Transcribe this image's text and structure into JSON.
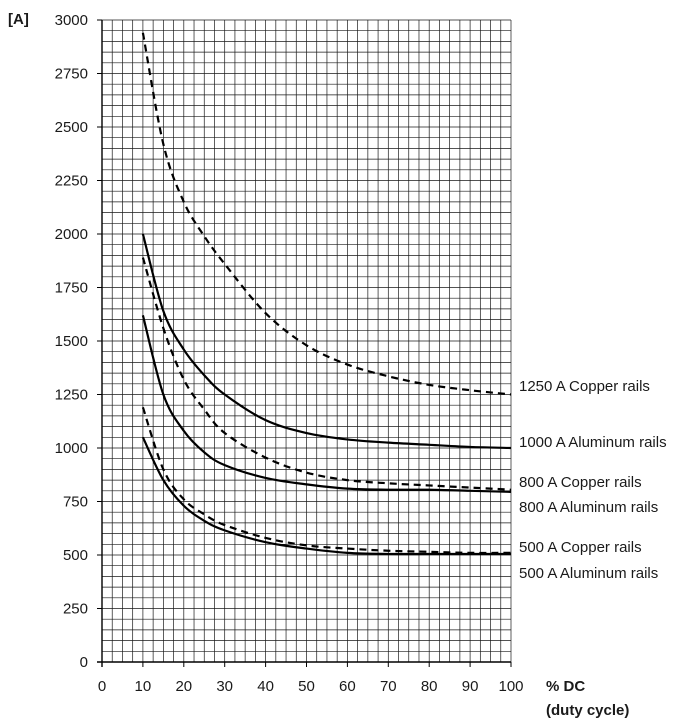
{
  "chart_data": {
    "type": "line",
    "ylabel": "[A]",
    "xlabel": "% DC",
    "xlabel_sub": "(duty cycle)",
    "xlim": [
      0,
      100
    ],
    "ylim": [
      0,
      3000
    ],
    "xticks": [
      0,
      10,
      20,
      30,
      40,
      50,
      60,
      70,
      80,
      90,
      100
    ],
    "yticks": [
      0,
      250,
      500,
      750,
      1000,
      1250,
      1500,
      1750,
      2000,
      2250,
      2500,
      2750,
      3000
    ],
    "grid": "on",
    "x": [
      10,
      15,
      20,
      25,
      30,
      40,
      50,
      60,
      70,
      80,
      90,
      100
    ],
    "series": [
      {
        "name": "1250 A Copper rails",
        "style": "dashed",
        "values": [
          2940,
          2420,
          2150,
          1990,
          1860,
          1630,
          1480,
          1390,
          1335,
          1295,
          1270,
          1250
        ]
      },
      {
        "name": "1000 A Aluminum rails",
        "style": "solid",
        "values": [
          2000,
          1640,
          1460,
          1340,
          1250,
          1130,
          1070,
          1040,
          1025,
          1015,
          1005,
          1000
        ]
      },
      {
        "name": "800 A Copper rails",
        "style": "dashed",
        "values": [
          1890,
          1560,
          1320,
          1180,
          1070,
          955,
          885,
          850,
          835,
          825,
          815,
          805
        ]
      },
      {
        "name": "800 A Aluminum rails",
        "style": "solid",
        "values": [
          1620,
          1250,
          1080,
          980,
          920,
          860,
          830,
          810,
          805,
          805,
          800,
          795
        ]
      },
      {
        "name": "500 A Copper rails",
        "style": "dashed",
        "values": [
          1190,
          900,
          760,
          690,
          640,
          580,
          545,
          530,
          520,
          515,
          510,
          510
        ]
      },
      {
        "name": "500 A Aluminum rails",
        "style": "solid",
        "values": [
          1050,
          850,
          730,
          660,
          615,
          560,
          530,
          510,
          505,
          505,
          505,
          505
        ]
      }
    ]
  }
}
